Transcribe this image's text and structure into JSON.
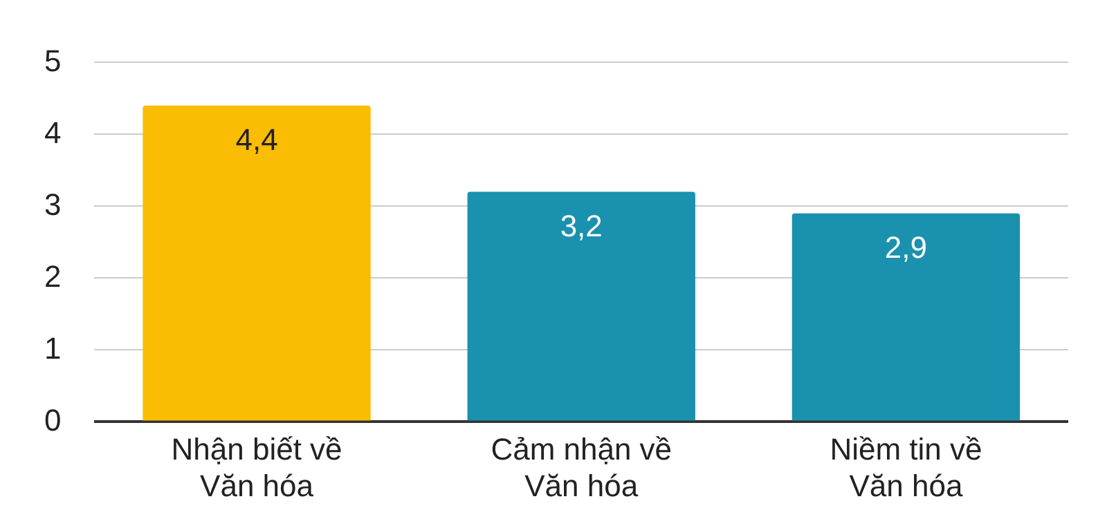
{
  "chart_data": {
    "type": "bar",
    "categories": [
      "Nhận biết về Văn hóa",
      "Cảm nhận về Văn hóa",
      "Niềm tin về Văn hóa"
    ],
    "values": [
      4.4,
      3.2,
      2.9
    ],
    "value_labels": [
      "4,4",
      "3,2",
      "2,9"
    ],
    "colors": [
      "#fbbc04",
      "#1a91ae",
      "#1a91ae"
    ],
    "ylim": [
      0,
      5
    ],
    "yticks": [
      0,
      1,
      2,
      3,
      4,
      5
    ],
    "grid": "y",
    "legend": false
  }
}
